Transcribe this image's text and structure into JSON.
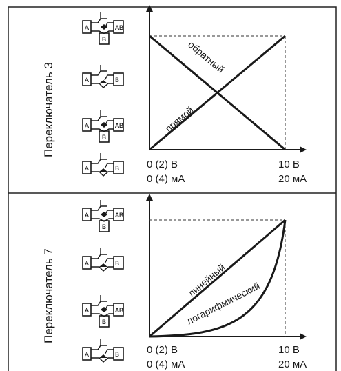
{
  "panels": [
    {
      "switch_label": "Переключатель 3",
      "curve_labels": [
        "обратный",
        "прямой"
      ],
      "x_min_labels": [
        "0 (2) В",
        "0 (4) мА"
      ],
      "x_max_labels": [
        "10 В",
        "20 мА"
      ]
    },
    {
      "switch_label": "Переключатель 7",
      "curve_labels": [
        "линейный",
        "логарифмический"
      ],
      "x_min_labels": [
        "0 (2) В",
        "0 (4) мА"
      ],
      "x_max_labels": [
        "10 В",
        "20 мА"
      ]
    }
  ],
  "valve_port_labels": [
    "A",
    "AB",
    "B"
  ],
  "colors": {
    "line": "#1a1a1a",
    "dash": "#333333",
    "frame": "#222222"
  }
}
